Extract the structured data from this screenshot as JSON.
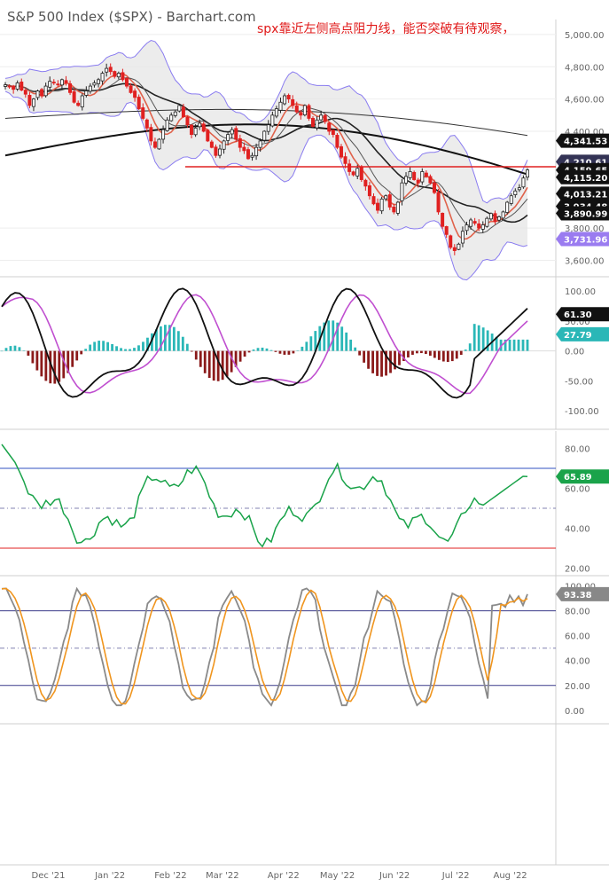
{
  "title": "S&P 500 Index ($SPX) - Barchart.com",
  "annotation": "spx靠近左侧高点阻力线，能否突破有待观察，",
  "chart_data": [
    {
      "type": "candlestick",
      "name": "price",
      "yticks": [
        "5,000.00",
        "4,800.00",
        "4,600.00",
        "4,400.00",
        "3,800.00",
        "3,600.00"
      ],
      "ytick_values": [
        5000,
        4800,
        4600,
        4400,
        3800,
        3600
      ],
      "ylim": [
        3520,
        5060
      ],
      "resistance_level": 4180,
      "last_values": [
        {
          "label": "4,341.53",
          "value": 4341.53,
          "color": "#111111"
        },
        {
          "label": "4,210.61",
          "value": 4210.61,
          "color": "#333355"
        },
        {
          "label": "4,159.65",
          "value": 4159.65,
          "color": "#111111"
        },
        {
          "label": "4,115.20",
          "value": 4115.2,
          "color": "#111111"
        },
        {
          "label": "4,013.21",
          "value": 4013.21,
          "color": "#111111"
        },
        {
          "label": "3,934.48",
          "value": 3934.48,
          "color": "#111111"
        },
        {
          "label": "3,890.99",
          "value": 3890.99,
          "color": "#111111"
        },
        {
          "label": "3,731.96",
          "value": 3731.96,
          "color": "#9a7cf0"
        }
      ],
      "close_series": [
        4688,
        4680,
        4660,
        4700,
        4655,
        4630,
        4560,
        4600,
        4650,
        4620,
        4680,
        4710,
        4700,
        4690,
        4720,
        4700,
        4640,
        4580,
        4560,
        4620,
        4650,
        4680,
        4700,
        4720,
        4760,
        4790,
        4770,
        4740,
        4760,
        4720,
        4680,
        4640,
        4610,
        4540,
        4480,
        4420,
        4340,
        4300,
        4350,
        4410,
        4470,
        4500,
        4520,
        4560,
        4490,
        4440,
        4380,
        4420,
        4450,
        4400,
        4340,
        4300,
        4250,
        4290,
        4340,
        4380,
        4410,
        4350,
        4300,
        4280,
        4230,
        4250,
        4300,
        4340,
        4400,
        4440,
        4500,
        4540,
        4580,
        4620,
        4600,
        4560,
        4520,
        4500,
        4560,
        4480,
        4430,
        4470,
        4500,
        4460,
        4400,
        4380,
        4300,
        4240,
        4200,
        4150,
        4130,
        4170,
        4100,
        4060,
        4000,
        3950,
        3910,
        3980,
        4000,
        3930,
        3900,
        3960,
        4080,
        4120,
        4150,
        4100,
        4080,
        4150,
        4120,
        4080,
        4020,
        3900,
        3810,
        3760,
        3680,
        3660,
        3700,
        3780,
        3820,
        3850,
        3830,
        3800,
        3820,
        3860,
        3890,
        3840,
        3870,
        3900,
        3960,
        4000,
        4030,
        4050,
        4110,
        4160
      ],
      "xticks": [
        {
          "label": "Dec '21",
          "pos": 0.087
        },
        {
          "label": "Jan '22",
          "pos": 0.198
        },
        {
          "label": "Feb '22",
          "pos": 0.307
        },
        {
          "label": "Mar '22",
          "pos": 0.4
        },
        {
          "label": "Apr '22",
          "pos": 0.51
        },
        {
          "label": "May '22",
          "pos": 0.607
        },
        {
          "label": "Jun '22",
          "pos": 0.71
        },
        {
          "label": "Jul '22",
          "pos": 0.82
        },
        {
          "label": "Aug '22",
          "pos": 0.918
        }
      ]
    },
    {
      "type": "histogram",
      "name": "macd",
      "yticks": [
        "100.00",
        "50.00",
        "0.00",
        "-50.00",
        "-100.00"
      ],
      "ytick_values": [
        100,
        50,
        0,
        -50,
        -100
      ],
      "ylim": [
        -125,
        115
      ],
      "last_values": [
        {
          "label": "61.30",
          "value": 61.3,
          "color": "#111111"
        },
        {
          "label": "27.79",
          "value": 27.79,
          "color": "#2ab7b7"
        }
      ]
    },
    {
      "type": "line",
      "name": "rsi",
      "yticks": [
        "80.00",
        "60.00",
        "40.00",
        "20.00"
      ],
      "ytick_values": [
        80,
        60,
        40,
        20
      ],
      "ylim": [
        18,
        86
      ],
      "upper_band": 70,
      "lower_band": 30,
      "mid_band": 50,
      "last_values": [
        {
          "label": "65.89",
          "value": 65.89,
          "color": "#1aa34a"
        }
      ]
    },
    {
      "type": "line",
      "name": "stochastic",
      "yticks": [
        "100.00",
        "80.00",
        "60.00",
        "40.00",
        "20.00",
        "0.00"
      ],
      "ytick_values": [
        100,
        80,
        60,
        40,
        20,
        0
      ],
      "ylim": [
        -8,
        104
      ],
      "upper_band": 80,
      "lower_band": 20,
      "mid_band": 50,
      "last_values": [
        {
          "label": "93.38",
          "value": 93.38,
          "color": "#888888"
        }
      ]
    }
  ]
}
